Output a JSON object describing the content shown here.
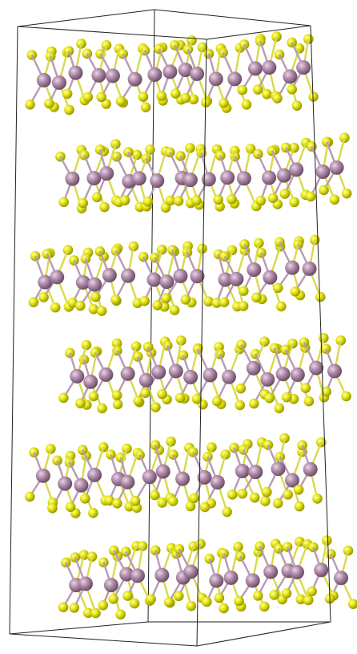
{
  "image": {
    "description_icon": "layered-crystal-structure",
    "background_color": "#ffffff",
    "frame_color": "#222222",
    "atoms": {
      "metal": {
        "color": "#b48fae",
        "highlight": "#e7d6e4",
        "shade": "#7e5f79"
      },
      "chalcogen": {
        "color": "#e6e619",
        "highlight": "#ffff8a",
        "shade": "#a7a700"
      }
    },
    "layers": [
      {
        "id": 1,
        "type": "trilayer"
      },
      {
        "id": 2,
        "type": "trilayer"
      },
      {
        "id": 3,
        "type": "trilayer"
      },
      {
        "id": 4,
        "type": "trilayer"
      },
      {
        "id": 5,
        "type": "trilayer"
      },
      {
        "id": 6,
        "type": "trilayer"
      }
    ]
  }
}
